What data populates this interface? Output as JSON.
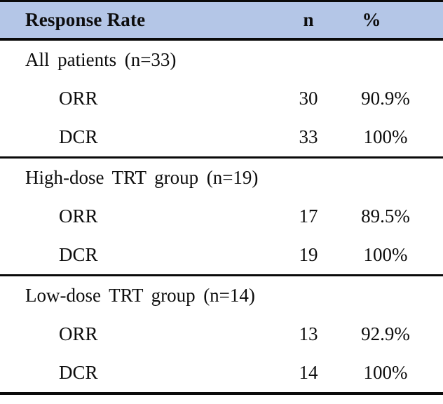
{
  "chart_data": {
    "type": "table",
    "title": "Response Rate",
    "columns": [
      "Response Rate",
      "n",
      "%"
    ],
    "sections": [
      {
        "group_label": "All patients (n=33)",
        "rows": [
          {
            "label": "ORR",
            "n": "30",
            "pct": "90.9%"
          },
          {
            "label": "DCR",
            "n": "33",
            "pct": "100%"
          }
        ]
      },
      {
        "group_label": "High-dose TRT group (n=19)",
        "rows": [
          {
            "label": "ORR",
            "n": "17",
            "pct": "89.5%"
          },
          {
            "label": "DCR",
            "n": "19",
            "pct": "100%"
          }
        ]
      },
      {
        "group_label": "Low-dose TRT group (n=14)",
        "rows": [
          {
            "label": "ORR",
            "n": "13",
            "pct": "92.9%"
          },
          {
            "label": "DCR",
            "n": "14",
            "pct": "100%"
          }
        ]
      }
    ],
    "layout": {
      "grid": "off",
      "legend": "none",
      "header_style": "shaded band, bold text",
      "rules": "horizontal only: above header, below header, between sections, bottom"
    },
    "colors": {
      "header_bg": "#b4c6e7",
      "border": "#0a0a0a",
      "text": "#0d0d0d",
      "background": "#ffffff"
    }
  }
}
